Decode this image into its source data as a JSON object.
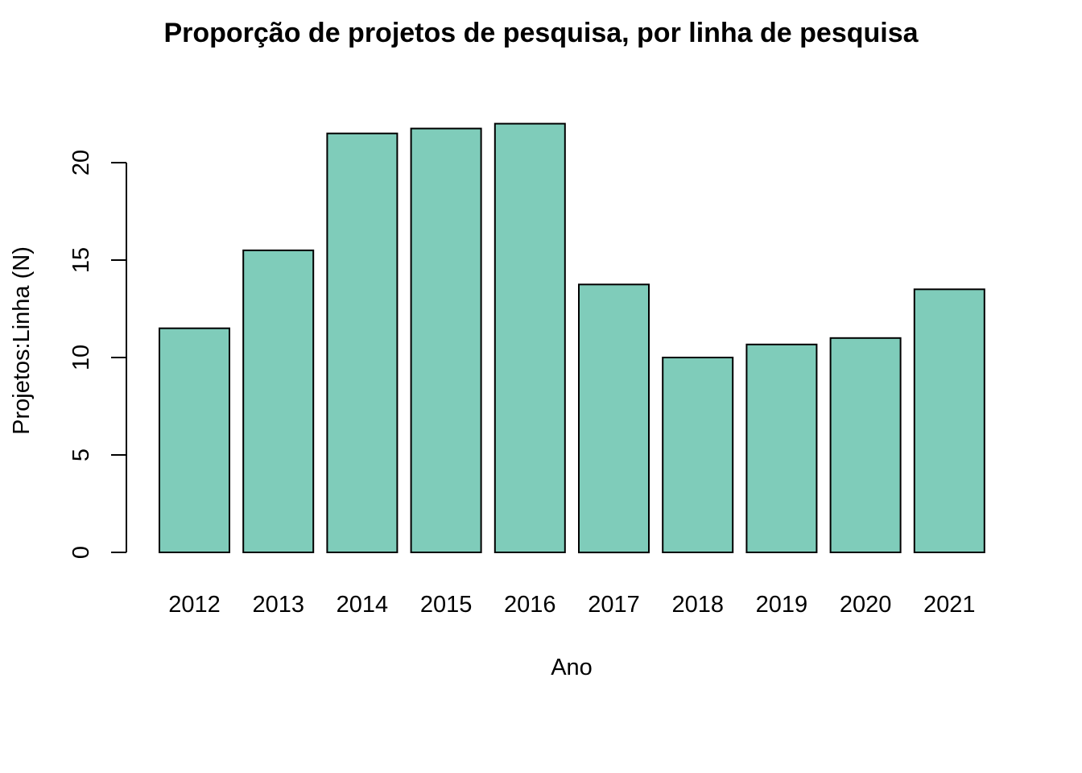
{
  "chart_data": {
    "type": "bar",
    "title": "Proporção de projetos de pesquisa, por linha de pesquisa",
    "xlabel": "Ano",
    "ylabel": "Projetos:Linha (N)",
    "categories": [
      "2012",
      "2013",
      "2014",
      "2015",
      "2016",
      "2017",
      "2018",
      "2019",
      "2020",
      "2021"
    ],
    "values": [
      11.5,
      15.5,
      21.5,
      21.75,
      22.0,
      13.75,
      10.0,
      10.67,
      11.0,
      13.5
    ],
    "ylim": [
      0,
      22.5
    ],
    "yticks": [
      0,
      5,
      10,
      15,
      20
    ],
    "grid": false,
    "legend": "none",
    "bar_color": "#7FCCBA",
    "bar_edge_color": "#000000"
  }
}
